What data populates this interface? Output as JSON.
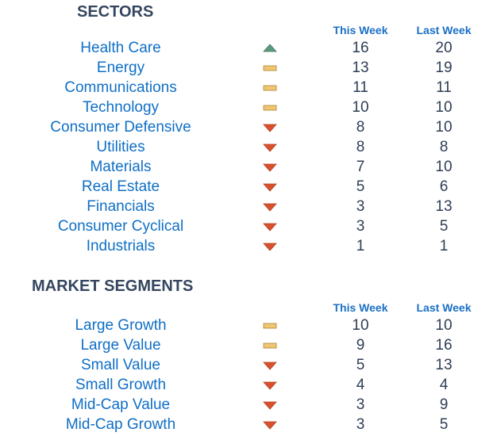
{
  "sectors": {
    "title": "SECTORS",
    "col_this": "This Week",
    "col_last": "Last Week",
    "rows": [
      {
        "label": "Health Care",
        "trend": "up",
        "this": "16",
        "last": "20"
      },
      {
        "label": "Energy",
        "trend": "flat",
        "this": "13",
        "last": "19"
      },
      {
        "label": "Communications",
        "trend": "flat",
        "this": "11",
        "last": "11"
      },
      {
        "label": "Technology",
        "trend": "flat",
        "this": "10",
        "last": "10"
      },
      {
        "label": "Consumer Defensive",
        "trend": "down",
        "this": "8",
        "last": "10"
      },
      {
        "label": "Utilities",
        "trend": "down",
        "this": "8",
        "last": "8"
      },
      {
        "label": "Materials",
        "trend": "down",
        "this": "7",
        "last": "10"
      },
      {
        "label": "Real Estate",
        "trend": "down",
        "this": "5",
        "last": "6"
      },
      {
        "label": "Financials",
        "trend": "down",
        "this": "3",
        "last": "13"
      },
      {
        "label": "Consumer Cyclical",
        "trend": "down",
        "this": "3",
        "last": "5"
      },
      {
        "label": "Industrials",
        "trend": "down",
        "this": "1",
        "last": "1"
      }
    ]
  },
  "segments": {
    "title": "MARKET SEGMENTS",
    "col_this": "This Week",
    "col_last": "Last Week",
    "rows": [
      {
        "label": "Large Growth",
        "trend": "flat",
        "this": "10",
        "last": "10"
      },
      {
        "label": "Large Value",
        "trend": "flat",
        "this": "9",
        "last": "16"
      },
      {
        "label": "Small Value",
        "trend": "down",
        "this": "5",
        "last": "13"
      },
      {
        "label": "Small Growth",
        "trend": "down",
        "this": "4",
        "last": "4"
      },
      {
        "label": "Mid-Cap Value",
        "trend": "down",
        "this": "3",
        "last": "9"
      },
      {
        "label": "Mid-Cap Growth",
        "trend": "down",
        "this": "3",
        "last": "5"
      }
    ]
  },
  "colors": {
    "up": "#5a9a7e",
    "flat": "#f0c674",
    "down": "#d9502e"
  }
}
